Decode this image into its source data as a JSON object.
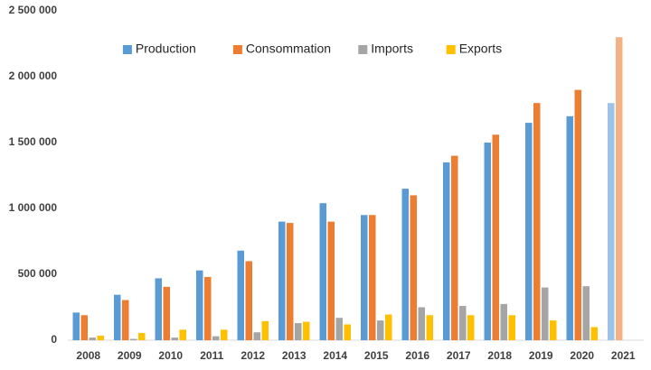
{
  "chart_data": {
    "type": "bar",
    "categories": [
      "2008",
      "2009",
      "2010",
      "2011",
      "2012",
      "2013",
      "2014",
      "2015",
      "2016",
      "2017",
      "2018",
      "2019",
      "2020",
      "2021"
    ],
    "series": [
      {
        "name": "Production",
        "color": "#5b9bd5",
        "colors": [
          "#5b9bd5",
          "#5b9bd5",
          "#5b9bd5",
          "#5b9bd5",
          "#5b9bd5",
          "#5b9bd5",
          "#5b9bd5",
          "#5b9bd5",
          "#5b9bd5",
          "#5b9bd5",
          "#5b9bd5",
          "#5b9bd5",
          "#5b9bd5",
          "#9dc3e6"
        ],
        "values": [
          210000,
          345000,
          470000,
          530000,
          680000,
          900000,
          1040000,
          950000,
          1150000,
          1350000,
          1500000,
          1650000,
          1700000,
          1800000
        ]
      },
      {
        "name": "Consommation",
        "color": "#ed7d31",
        "colors": [
          "#ed7d31",
          "#ed7d31",
          "#ed7d31",
          "#ed7d31",
          "#ed7d31",
          "#ed7d31",
          "#ed7d31",
          "#ed7d31",
          "#ed7d31",
          "#ed7d31",
          "#ed7d31",
          "#ed7d31",
          "#ed7d31",
          "#f4b183"
        ],
        "values": [
          190000,
          305000,
          405000,
          480000,
          600000,
          890000,
          900000,
          950000,
          1100000,
          1400000,
          1560000,
          1800000,
          1900000,
          2300000
        ]
      },
      {
        "name": "Imports",
        "color": "#a5a5a5",
        "values": [
          20000,
          10000,
          20000,
          30000,
          60000,
          130000,
          170000,
          150000,
          250000,
          260000,
          275000,
          400000,
          410000,
          null
        ]
      },
      {
        "name": "Exports",
        "color": "#ffc000",
        "values": [
          35000,
          55000,
          80000,
          80000,
          145000,
          140000,
          120000,
          195000,
          190000,
          190000,
          190000,
          150000,
          100000,
          null
        ]
      }
    ],
    "ylim": [
      0,
      2500000
    ],
    "yticks": [
      0,
      {
        "value": 500000,
        "label": "500 000"
      },
      {
        "value": 1000000,
        "label": "1 000 000"
      },
      {
        "value": 1500000,
        "label": "1 500 000"
      },
      {
        "value": 2000000,
        "label": "2 000 000"
      },
      {
        "value": 2500000,
        "label": "2 500 000"
      }
    ],
    "grid": false,
    "legend": "top"
  }
}
